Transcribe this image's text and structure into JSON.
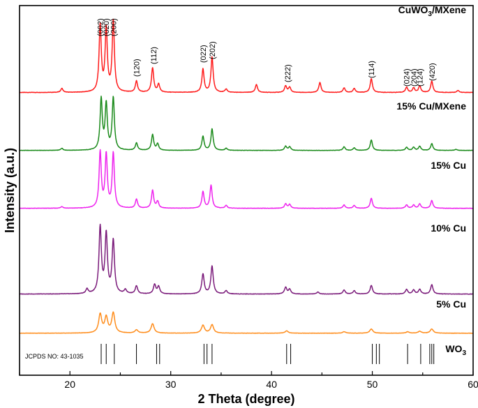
{
  "chart_data": {
    "type": "line",
    "title": "",
    "xlabel": "2 Theta (degree)",
    "ylabel": "Intensity (a.u.)",
    "xlim": [
      15,
      60
    ],
    "xticks": [
      20,
      30,
      40,
      50,
      60
    ],
    "y_ticks_shown": false,
    "grid": false,
    "legend": "inline labels at right of each trace",
    "series": [
      {
        "name": "CuWO3/MXene",
        "label_main": "CuWO",
        "label_sub": "3",
        "label_rest": "/MXene",
        "color": "#ff1a1a",
        "peaks": [
          {
            "x": 19.2,
            "h": 0.06
          },
          {
            "x": 23.0,
            "h": 1.0
          },
          {
            "x": 23.6,
            "h": 0.95
          },
          {
            "x": 24.3,
            "h": 1.07
          },
          {
            "x": 26.6,
            "h": 0.17
          },
          {
            "x": 28.2,
            "h": 0.37
          },
          {
            "x": 28.8,
            "h": 0.12
          },
          {
            "x": 33.2,
            "h": 0.35
          },
          {
            "x": 34.1,
            "h": 0.53
          },
          {
            "x": 35.5,
            "h": 0.05
          },
          {
            "x": 38.5,
            "h": 0.12
          },
          {
            "x": 41.4,
            "h": 0.1
          },
          {
            "x": 41.8,
            "h": 0.08
          },
          {
            "x": 44.8,
            "h": 0.15
          },
          {
            "x": 47.2,
            "h": 0.07
          },
          {
            "x": 48.2,
            "h": 0.06
          },
          {
            "x": 49.9,
            "h": 0.21
          },
          {
            "x": 53.4,
            "h": 0.08
          },
          {
            "x": 54.1,
            "h": 0.07
          },
          {
            "x": 54.7,
            "h": 0.1
          },
          {
            "x": 55.9,
            "h": 0.17
          },
          {
            "x": 58.5,
            "h": 0.03
          }
        ]
      },
      {
        "name": "15% Cu/MXene",
        "color": "#1a8a1a",
        "peaks": [
          {
            "x": 19.2,
            "h": 0.04
          },
          {
            "x": 23.1,
            "h": 0.97
          },
          {
            "x": 23.6,
            "h": 0.87
          },
          {
            "x": 24.3,
            "h": 1.0
          },
          {
            "x": 26.6,
            "h": 0.14
          },
          {
            "x": 28.2,
            "h": 0.3
          },
          {
            "x": 28.7,
            "h": 0.12
          },
          {
            "x": 33.2,
            "h": 0.27
          },
          {
            "x": 34.1,
            "h": 0.41
          },
          {
            "x": 35.5,
            "h": 0.04
          },
          {
            "x": 41.4,
            "h": 0.08
          },
          {
            "x": 41.8,
            "h": 0.07
          },
          {
            "x": 47.2,
            "h": 0.07
          },
          {
            "x": 48.2,
            "h": 0.05
          },
          {
            "x": 49.9,
            "h": 0.2
          },
          {
            "x": 53.4,
            "h": 0.06
          },
          {
            "x": 54.1,
            "h": 0.06
          },
          {
            "x": 54.7,
            "h": 0.08
          },
          {
            "x": 55.9,
            "h": 0.13
          },
          {
            "x": 58.3,
            "h": 0.02
          }
        ]
      },
      {
        "name": "15% Cu",
        "color": "#ee22ee",
        "peaks": [
          {
            "x": 19.2,
            "h": 0.03
          },
          {
            "x": 23.0,
            "h": 1.0
          },
          {
            "x": 23.6,
            "h": 0.95
          },
          {
            "x": 24.3,
            "h": 0.98
          },
          {
            "x": 26.6,
            "h": 0.16
          },
          {
            "x": 28.2,
            "h": 0.32
          },
          {
            "x": 28.7,
            "h": 0.12
          },
          {
            "x": 33.2,
            "h": 0.3
          },
          {
            "x": 34.0,
            "h": 0.41
          },
          {
            "x": 35.5,
            "h": 0.05
          },
          {
            "x": 41.4,
            "h": 0.08
          },
          {
            "x": 41.8,
            "h": 0.07
          },
          {
            "x": 47.2,
            "h": 0.06
          },
          {
            "x": 48.2,
            "h": 0.05
          },
          {
            "x": 49.9,
            "h": 0.18
          },
          {
            "x": 53.4,
            "h": 0.06
          },
          {
            "x": 54.1,
            "h": 0.06
          },
          {
            "x": 54.7,
            "h": 0.08
          },
          {
            "x": 55.9,
            "h": 0.14
          }
        ]
      },
      {
        "name": "10% Cu",
        "color": "#7a1a7a",
        "peaks": [
          {
            "x": 21.7,
            "h": 0.07
          },
          {
            "x": 23.0,
            "h": 1.0
          },
          {
            "x": 23.6,
            "h": 0.89
          },
          {
            "x": 24.3,
            "h": 0.8
          },
          {
            "x": 25.5,
            "h": 0.06
          },
          {
            "x": 26.6,
            "h": 0.12
          },
          {
            "x": 28.4,
            "h": 0.14
          },
          {
            "x": 28.8,
            "h": 0.11
          },
          {
            "x": 33.2,
            "h": 0.3
          },
          {
            "x": 34.1,
            "h": 0.42
          },
          {
            "x": 35.5,
            "h": 0.05
          },
          {
            "x": 41.4,
            "h": 0.1
          },
          {
            "x": 41.8,
            "h": 0.07
          },
          {
            "x": 44.6,
            "h": 0.03
          },
          {
            "x": 47.2,
            "h": 0.06
          },
          {
            "x": 48.2,
            "h": 0.05
          },
          {
            "x": 49.9,
            "h": 0.13
          },
          {
            "x": 53.4,
            "h": 0.07
          },
          {
            "x": 54.1,
            "h": 0.06
          },
          {
            "x": 54.7,
            "h": 0.07
          },
          {
            "x": 55.9,
            "h": 0.14
          }
        ]
      },
      {
        "name": "5% Cu",
        "color": "#ff8c1a",
        "peaks": [
          {
            "x": 23.0,
            "h": 0.4
          },
          {
            "x": 23.6,
            "h": 0.33
          },
          {
            "x": 24.3,
            "h": 0.43
          },
          {
            "x": 26.6,
            "h": 0.07
          },
          {
            "x": 28.2,
            "h": 0.2
          },
          {
            "x": 33.2,
            "h": 0.17
          },
          {
            "x": 34.1,
            "h": 0.18
          },
          {
            "x": 41.5,
            "h": 0.05
          },
          {
            "x": 47.2,
            "h": 0.03
          },
          {
            "x": 49.9,
            "h": 0.09
          },
          {
            "x": 53.5,
            "h": 0.03
          },
          {
            "x": 54.7,
            "h": 0.04
          },
          {
            "x": 55.9,
            "h": 0.09
          }
        ]
      }
    ],
    "peak_labels": [
      {
        "text": "(002)",
        "x": 23.0
      },
      {
        "text": "(020)",
        "x": 23.6
      },
      {
        "text": "(200)",
        "x": 24.3
      },
      {
        "text": "(120)",
        "x": 26.6
      },
      {
        "text": "(112)",
        "x": 28.3
      },
      {
        "text": "(022)",
        "x": 33.2
      },
      {
        "text": "(202)",
        "x": 34.1
      },
      {
        "text": "(222)",
        "x": 41.6
      },
      {
        "text": "(114)",
        "x": 49.9
      },
      {
        "text": "(024)",
        "x": 53.4
      },
      {
        "text": "(204)",
        "x": 54.1
      },
      {
        "text": "(124)",
        "x": 54.7
      },
      {
        "text": "(420)",
        "x": 55.9
      }
    ],
    "reference": {
      "name_main": "WO",
      "name_sub": "3",
      "card": "JCPDS NO: 43-1035",
      "lines": [
        23.1,
        23.6,
        24.4,
        26.6,
        28.6,
        28.9,
        33.3,
        33.6,
        34.1,
        41.5,
        41.9,
        50.0,
        50.4,
        50.7,
        53.5,
        54.8,
        55.7,
        55.9,
        56.1
      ]
    }
  }
}
